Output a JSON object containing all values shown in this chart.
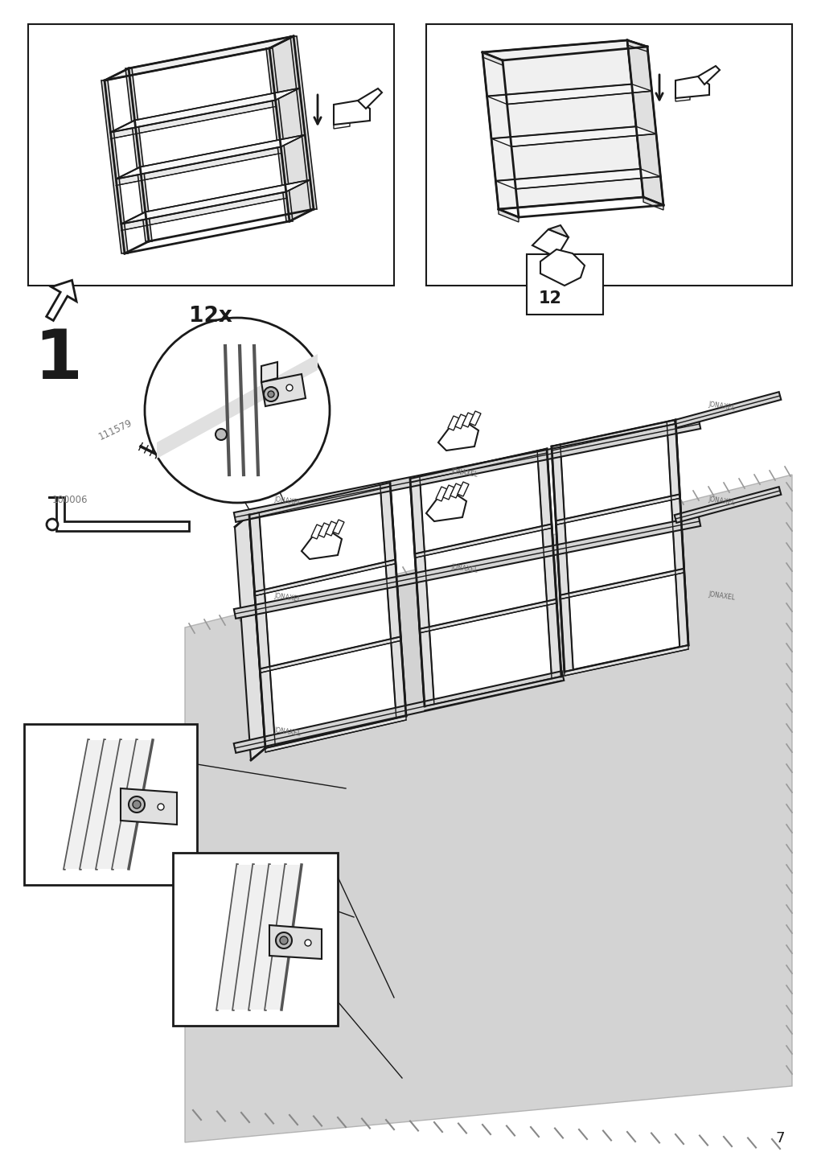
{
  "page_number": "7",
  "bg": "#ffffff",
  "lc": "#1a1a1a",
  "gray1": "#cccccc",
  "gray2": "#e0e0e0",
  "gray3": "#aaaaaa",
  "step_num": "1",
  "qty": "12x",
  "ref": "12",
  "part1": "111579",
  "part2": "100006",
  "fig_w": 10.12,
  "fig_h": 14.32,
  "dpi": 100
}
